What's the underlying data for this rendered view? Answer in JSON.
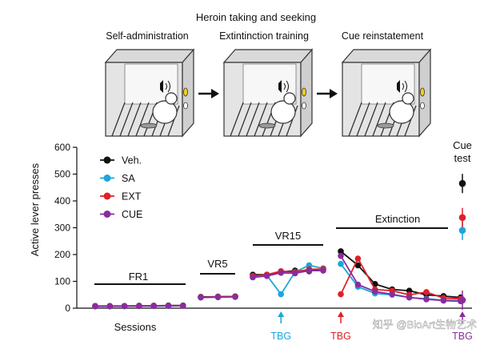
{
  "header": {
    "title": "Heroin taking and seeking",
    "panel_labels": [
      "Self-administration",
      "Extintinction training",
      "Cue reinstatement"
    ]
  },
  "chart_data": {
    "type": "line",
    "ylabel": "Active lever presses",
    "ylim": [
      0,
      600
    ],
    "yticks": [
      0,
      100,
      200,
      300,
      400,
      500,
      600
    ],
    "xlabel": "Sessions",
    "phases": [
      "FR1",
      "VR5",
      "VR15",
      "Extinction"
    ],
    "annotations": {
      "cue_test": "Cue test",
      "tbg_sa": "TBG",
      "tbg_ext": "TBG",
      "tbg_cue": "TBG"
    },
    "annotation_colors": {
      "tbg_sa": "#1aa7dd",
      "tbg_ext": "#e0202a",
      "tbg_cue": "#8a2c9e"
    },
    "watermark": "知乎 @BioArt生物艺术",
    "series": [
      {
        "name": "Veh.",
        "color": "#111111",
        "segments": [
          [
            [
              1,
              8
            ],
            [
              2,
              8
            ],
            [
              3,
              8
            ],
            [
              4,
              9
            ],
            [
              5,
              9
            ],
            [
              6,
              10
            ],
            [
              7,
              10
            ]
          ],
          [
            [
              8,
              42
            ],
            [
              9,
              43
            ],
            [
              10,
              44
            ]
          ],
          [
            [
              11,
              125
            ],
            [
              12,
              125
            ],
            [
              13,
              135
            ],
            [
              14,
              140
            ],
            [
              15,
              138
            ],
            [
              16,
              148
            ]
          ],
          [
            [
              17,
              212
            ],
            [
              18,
              160
            ],
            [
              19,
              90
            ],
            [
              20,
              70
            ],
            [
              21,
              65
            ],
            [
              22,
              50
            ],
            [
              23,
              45
            ],
            [
              24,
              40
            ]
          ]
        ],
        "cue": 465
      },
      {
        "name": "SA",
        "color": "#1aa7dd",
        "segments": [
          [
            [
              1,
              7
            ],
            [
              2,
              7
            ],
            [
              3,
              7
            ],
            [
              4,
              8
            ],
            [
              5,
              8
            ],
            [
              6,
              8
            ],
            [
              7,
              9
            ]
          ],
          [
            [
              8,
              40
            ],
            [
              9,
              42
            ],
            [
              10,
              43
            ]
          ],
          [
            [
              11,
              118
            ],
            [
              12,
              122
            ],
            [
              13,
              52
            ],
            [
              14,
              135
            ],
            [
              15,
              160
            ],
            [
              16,
              148
            ]
          ],
          [
            [
              17,
              165
            ],
            [
              18,
              80
            ],
            [
              19,
              55
            ],
            [
              20,
              50
            ],
            [
              21,
              40
            ],
            [
              22,
              35
            ],
            [
              23,
              30
            ],
            [
              24,
              28
            ]
          ]
        ],
        "cue": 290
      },
      {
        "name": "EXT",
        "color": "#e0202a",
        "segments": [
          [
            [
              1,
              8
            ],
            [
              2,
              8
            ],
            [
              3,
              8
            ],
            [
              4,
              8
            ],
            [
              5,
              9
            ],
            [
              6,
              9
            ],
            [
              7,
              9
            ]
          ],
          [
            [
              8,
              41
            ],
            [
              9,
              42
            ],
            [
              10,
              44
            ]
          ],
          [
            [
              11,
              120
            ],
            [
              12,
              125
            ],
            [
              13,
              138
            ],
            [
              14,
              135
            ],
            [
              15,
              145
            ],
            [
              16,
              146
            ]
          ],
          [
            [
              17,
              52
            ],
            [
              18,
              185
            ],
            [
              19,
              70
            ],
            [
              20,
              65
            ],
            [
              21,
              50
            ],
            [
              22,
              60
            ],
            [
              23,
              38
            ],
            [
              24,
              35
            ]
          ]
        ],
        "cue": 338
      },
      {
        "name": "CUE",
        "color": "#8a2c9e",
        "segments": [
          [
            [
              1,
              7
            ],
            [
              2,
              7
            ],
            [
              3,
              8
            ],
            [
              4,
              8
            ],
            [
              5,
              8
            ],
            [
              6,
              9
            ],
            [
              7,
              9
            ]
          ],
          [
            [
              8,
              40
            ],
            [
              9,
              41
            ],
            [
              10,
              42
            ]
          ],
          [
            [
              11,
              115
            ],
            [
              12,
              120
            ],
            [
              13,
              132
            ],
            [
              14,
              130
            ],
            [
              15,
              140
            ],
            [
              16,
              140
            ]
          ],
          [
            [
              17,
              195
            ],
            [
              18,
              88
            ],
            [
              19,
              62
            ],
            [
              20,
              52
            ],
            [
              21,
              40
            ],
            [
              22,
              33
            ],
            [
              23,
              28
            ],
            [
              24,
              26
            ]
          ]
        ],
        "cue": 30
      }
    ]
  }
}
